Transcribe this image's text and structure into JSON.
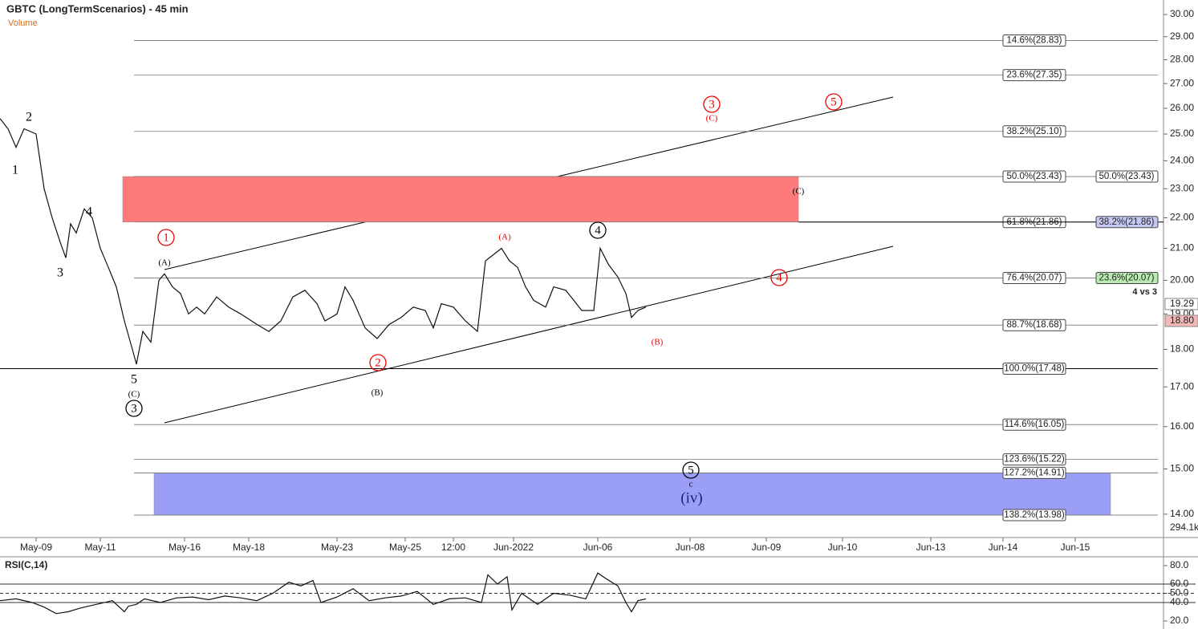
{
  "chart_data": [
    {
      "type": "line",
      "title": "GBTC (LongTermScenarios) - 45 min",
      "subtitle": "Volume",
      "log_scale": true,
      "xlim": [
        0,
        290
      ],
      "ylim": [
        13.51,
        30.67
      ],
      "xticks": [
        {
          "value": 9,
          "label": "May-09"
        },
        {
          "value": 25,
          "label": "May-11"
        },
        {
          "value": 46,
          "label": "May-16"
        },
        {
          "value": 62,
          "label": "May-18"
        },
        {
          "value": 84,
          "label": "May-23"
        },
        {
          "value": 101,
          "label": "May-25"
        },
        {
          "value": 113,
          "label": "12:00"
        },
        {
          "value": 128,
          "label": "Jun-2022"
        },
        {
          "value": 149,
          "label": "Jun-06"
        },
        {
          "value": 172,
          "label": "Jun-08"
        },
        {
          "value": 191,
          "label": "Jun-09"
        },
        {
          "value": 210,
          "label": "Jun-10"
        },
        {
          "value": 232,
          "label": "Jun-13"
        },
        {
          "value": 250,
          "label": "Jun-14"
        },
        {
          "value": 268,
          "label": "Jun-15"
        }
      ],
      "yticks": [
        {
          "value": 14,
          "label": "14.00"
        },
        {
          "value": 15,
          "label": "15.00"
        },
        {
          "value": 16,
          "label": "16.00"
        },
        {
          "value": 17,
          "label": "17.00"
        },
        {
          "value": 18,
          "label": "18.00"
        },
        {
          "value": 19,
          "label": "19.00"
        },
        {
          "value": 20,
          "label": "20.00"
        },
        {
          "value": 21,
          "label": "21.00"
        },
        {
          "value": 22,
          "label": "22.00"
        },
        {
          "value": 23,
          "label": "23.00"
        },
        {
          "value": 24,
          "label": "24.00"
        },
        {
          "value": 25,
          "label": "25.00"
        },
        {
          "value": 26,
          "label": "26.00"
        },
        {
          "value": 27,
          "label": "27.00"
        },
        {
          "value": 28,
          "label": "28.00"
        },
        {
          "value": 29,
          "label": "29.00"
        },
        {
          "value": 30,
          "label": "30.00"
        }
      ],
      "x": [
        0,
        2,
        4,
        6,
        9,
        11,
        13,
        15,
        16.4,
        17.6,
        19,
        21,
        23,
        25,
        27,
        29,
        31,
        33,
        34,
        35.6,
        37.6,
        39.6,
        41,
        43,
        45,
        47,
        49,
        51,
        54,
        57,
        60,
        64,
        67,
        70,
        73,
        76,
        79,
        81,
        84,
        86,
        88,
        91,
        94,
        97,
        100,
        103,
        106,
        108,
        110,
        113,
        116,
        119,
        121,
        123,
        125,
        127,
        129,
        131,
        133,
        136,
        138,
        141,
        143,
        145,
        148,
        149.6,
        151.6,
        154,
        156,
        157.4,
        159,
        161
      ],
      "series": [
        {
          "color": "#111111",
          "values": [
            25.6,
            25.2,
            24.5,
            25.2,
            25.0,
            23.0,
            22.0,
            21.2,
            20.7,
            21.8,
            21.5,
            22.3,
            22.0,
            21.0,
            20.4,
            19.8,
            18.8,
            18.0,
            17.6,
            18.5,
            18.2,
            20.0,
            20.2,
            19.8,
            19.6,
            19.0,
            19.2,
            19.0,
            19.5,
            19.2,
            19.0,
            18.7,
            18.5,
            18.8,
            19.5,
            19.7,
            19.3,
            18.8,
            19.0,
            19.8,
            19.4,
            18.6,
            18.3,
            18.7,
            18.9,
            19.2,
            19.1,
            18.6,
            19.3,
            19.2,
            18.8,
            18.5,
            20.6,
            20.8,
            21.0,
            20.6,
            20.4,
            19.8,
            19.4,
            19.2,
            19.8,
            19.7,
            19.4,
            19.1,
            19.1,
            21.0,
            20.5,
            20.1,
            19.6,
            18.9,
            19.1,
            19.2
          ]
        }
      ],
      "fib_levels": [
        {
          "value": 28.83,
          "label": "14.6%(28.83)"
        },
        {
          "value": 27.35,
          "label": "23.6%(27.35)"
        },
        {
          "value": 25.1,
          "label": "38.2%(25.10)"
        },
        {
          "value": 23.43,
          "label": "50.0%(23.43)"
        },
        {
          "value": 21.86,
          "label": "61.8%(21.86)"
        },
        {
          "value": 20.07,
          "label": "76.4%(20.07)"
        },
        {
          "value": 18.68,
          "label": "88.7%(18.68)"
        },
        {
          "value": 17.48,
          "label": "100.0%(17.48)"
        },
        {
          "value": 16.05,
          "label": "114.6%(16.05)"
        },
        {
          "value": 15.22,
          "label": "123.6%(15.22)"
        },
        {
          "value": 14.91,
          "label": "127.2%(14.91)"
        },
        {
          "value": 13.98,
          "label": "138.2%(13.98)"
        }
      ],
      "right_levels": [
        {
          "value": 23.43,
          "label": "50.0%(23.43)",
          "color": "#ffffff"
        },
        {
          "value": 21.86,
          "label": "38.2%(21.86)",
          "color": "#c5c8f2"
        },
        {
          "value": 20.07,
          "label": "23.6%(20.07)",
          "color": "#b9eab0"
        }
      ],
      "zones": [
        {
          "from": 21.86,
          "to": 23.43,
          "color": "#ff7b7b"
        },
        {
          "from": 13.98,
          "to": 14.91,
          "color": "#9b9ef5"
        }
      ],
      "price_labels": [
        {
          "value": 19.29,
          "label": "19.29",
          "color": "#ffffff"
        },
        {
          "value": 18.8,
          "label": "18.80",
          "color": "#f2b8b8"
        }
      ],
      "volume_label": "294.1k",
      "note": "4 vs 3",
      "annotations": [
        "2",
        "1",
        "4",
        "3",
        "5",
        "(C)",
        "3",
        "(A)",
        "1",
        "2",
        "(B)",
        "(A)",
        "4",
        "(B)",
        "3",
        "(C)",
        "5",
        "(C)",
        "4",
        "5",
        "c",
        "(iv)"
      ]
    },
    {
      "type": "line",
      "title": "RSI(C,14)",
      "xlim": [
        0,
        290
      ],
      "ylim": [
        11.3,
        88.7
      ],
      "yticks": [
        {
          "value": 20,
          "label": "20.0"
        },
        {
          "value": 40,
          "label": "40.0"
        },
        {
          "value": 50,
          "label": "50.0"
        },
        {
          "value": 60,
          "label": "60.0"
        },
        {
          "value": 80,
          "label": "80.0"
        }
      ],
      "levels": [
        40,
        50,
        60
      ],
      "x": [
        0,
        4,
        8,
        11,
        14,
        17,
        20,
        24,
        28,
        31,
        32,
        34,
        36,
        40,
        44,
        48,
        52,
        56,
        60,
        64,
        68,
        72,
        75,
        78,
        80,
        84,
        88,
        92,
        96,
        100,
        104,
        108,
        112,
        116,
        120,
        121.6,
        124,
        126.4,
        127.6,
        130,
        134,
        138,
        142,
        146,
        149,
        151,
        154,
        156,
        157.4,
        159,
        161
      ],
      "series": [
        {
          "color": "#111111",
          "values": [
            42,
            44,
            40,
            35,
            28,
            30,
            34,
            38,
            42,
            30,
            36,
            38,
            44,
            40,
            45,
            46,
            43,
            47,
            45,
            42,
            50,
            62,
            58,
            64,
            40,
            46,
            55,
            42,
            45,
            47,
            52,
            38,
            44,
            45,
            40,
            70,
            60,
            68,
            32,
            50,
            38,
            50,
            48,
            44,
            72,
            66,
            58,
            40,
            30,
            42,
            44
          ]
        }
      ]
    }
  ]
}
